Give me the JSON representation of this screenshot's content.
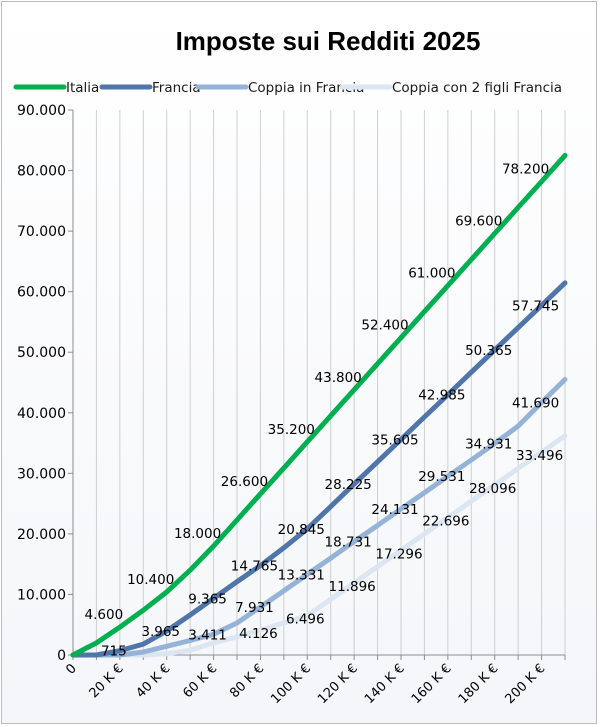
{
  "chart_data": {
    "type": "line",
    "title": "Imposte sui Redditi 2025",
    "xlabel": "",
    "ylabel": "",
    "x_tick_labels": [
      "0",
      "20 K €",
      "40 K €",
      "60 K €",
      "80 K €",
      "100 K €",
      "120 K €",
      "140 K €",
      "160 K €",
      "180 K €",
      "200 K €"
    ],
    "y_tick_labels": [
      "0",
      "10.000",
      "20.000",
      "30.000",
      "40.000",
      "50.000",
      "60.000",
      "70.000",
      "80.000",
      "90.000"
    ],
    "xlim": [
      0,
      210
    ],
    "ylim": [
      0,
      90000
    ],
    "grid": "vertical",
    "legend_position": "top",
    "series": [
      {
        "name": "Italia",
        "color": "#00b050",
        "x": [
          0,
          10,
          20,
          30,
          40,
          50,
          60,
          70,
          80,
          90,
          100,
          110,
          120,
          130,
          140,
          150,
          160,
          170,
          180,
          190,
          200,
          210
        ],
        "y": [
          0,
          2000,
          4600,
          7400,
          10400,
          14000,
          18000,
          22300,
          26600,
          30900,
          35200,
          39500,
          43800,
          48100,
          52400,
          56700,
          61000,
          65300,
          69600,
          73900,
          78200,
          82500
        ],
        "labels": [
          {
            "i": 2,
            "text": "4.600"
          },
          {
            "i": 4,
            "text": "10.400"
          },
          {
            "i": 6,
            "text": "18.000"
          },
          {
            "i": 8,
            "text": "26.600"
          },
          {
            "i": 10,
            "text": "35.200"
          },
          {
            "i": 12,
            "text": "43.800"
          },
          {
            "i": 14,
            "text": "52.400"
          },
          {
            "i": 16,
            "text": "61.000"
          },
          {
            "i": 18,
            "text": "69.600"
          },
          {
            "i": 20,
            "text": "78.200"
          }
        ]
      },
      {
        "name": "Francia",
        "color": "#4f75aa",
        "x": [
          0,
          10,
          20,
          30,
          40,
          50,
          60,
          70,
          80,
          90,
          100,
          110,
          120,
          130,
          140,
          150,
          160,
          170,
          180,
          190,
          200,
          210
        ],
        "y": [
          0,
          0,
          715,
          1800,
          3965,
          6600,
          9365,
          12100,
          14765,
          17700,
          20845,
          24500,
          28225,
          31900,
          35605,
          39300,
          42985,
          46700,
          50365,
          54050,
          57745,
          61450
        ],
        "labels": [
          {
            "i": 2,
            "text": "715"
          },
          {
            "i": 4,
            "text": "3.965"
          },
          {
            "i": 6,
            "text": "9.365"
          },
          {
            "i": 8,
            "text": "14.765"
          },
          {
            "i": 10,
            "text": "20.845"
          },
          {
            "i": 12,
            "text": "28.225"
          },
          {
            "i": 14,
            "text": "35.605"
          },
          {
            "i": 16,
            "text": "42.985"
          },
          {
            "i": 18,
            "text": "50.365"
          },
          {
            "i": 20,
            "text": "57.745"
          }
        ]
      },
      {
        "name": "Coppia in Francia",
        "color": "#95b3d7",
        "x": [
          0,
          10,
          20,
          30,
          40,
          50,
          60,
          70,
          80,
          90,
          100,
          110,
          120,
          130,
          140,
          150,
          160,
          170,
          180,
          190,
          200,
          210
        ],
        "y": [
          0,
          0,
          0,
          500,
          1430,
          2400,
          3411,
          5300,
          7931,
          10600,
          13331,
          16000,
          18731,
          21400,
          24131,
          26800,
          29531,
          32200,
          34931,
          37800,
          41690,
          45500
        ],
        "labels": [
          {
            "i": 6,
            "text": "3.411"
          },
          {
            "i": 8,
            "text": "7.931"
          },
          {
            "i": 10,
            "text": "13.331"
          },
          {
            "i": 12,
            "text": "18.731"
          },
          {
            "i": 14,
            "text": "24.131"
          },
          {
            "i": 16,
            "text": "29.531"
          },
          {
            "i": 18,
            "text": "34.931"
          },
          {
            "i": 20,
            "text": "41.690"
          }
        ]
      },
      {
        "name": "Coppia con 2 figli Francia",
        "color": "#dce6f2",
        "x": [
          0,
          10,
          20,
          30,
          40,
          50,
          60,
          70,
          80,
          90,
          100,
          110,
          120,
          130,
          140,
          150,
          160,
          170,
          180,
          190,
          200,
          210
        ],
        "y": [
          0,
          0,
          0,
          0,
          200,
          800,
          2000,
          3000,
          4126,
          5300,
          6496,
          9200,
          11896,
          14600,
          17296,
          20000,
          22696,
          25400,
          28096,
          30800,
          33496,
          36200
        ],
        "labels": [
          {
            "i": 8,
            "text": "4.126"
          },
          {
            "i": 10,
            "text": "6.496"
          },
          {
            "i": 12,
            "text": "11.896"
          },
          {
            "i": 14,
            "text": "17.296"
          },
          {
            "i": 16,
            "text": "22.696"
          },
          {
            "i": 18,
            "text": "28.096"
          },
          {
            "i": 20,
            "text": "33.496"
          }
        ]
      }
    ]
  }
}
